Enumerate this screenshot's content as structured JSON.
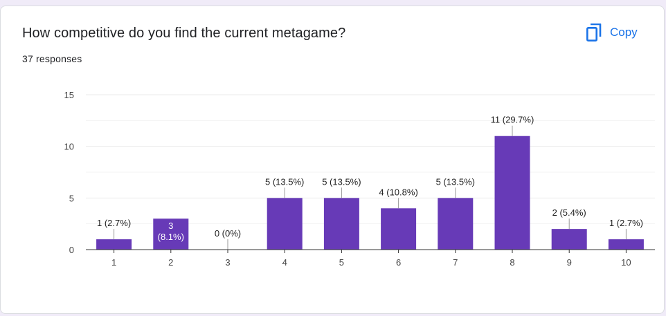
{
  "question": {
    "title": "How competitive do you find the current metagame?",
    "responses": "37 responses"
  },
  "toolbar": {
    "copy_label": "Copy",
    "copy_icon": "copy-icon"
  },
  "colors": {
    "bar": "#673ab7",
    "accent": "#1a73e8",
    "grid": "#ebebeb",
    "axis": "#333333"
  },
  "chart_data": {
    "type": "bar",
    "title": "",
    "xlabel": "",
    "ylabel": "",
    "categories": [
      "1",
      "2",
      "3",
      "4",
      "5",
      "6",
      "7",
      "8",
      "9",
      "10"
    ],
    "values": [
      1,
      3,
      0,
      5,
      5,
      4,
      5,
      11,
      2,
      1
    ],
    "data_labels": [
      "1 (2.7%)",
      "3 (8.1%)",
      "0 (0%)",
      "5 (13.5%)",
      "5 (13.5%)",
      "4 (10.8%)",
      "5 (13.5%)",
      "11 (29.7%)",
      "2 (5.4%)",
      "1 (2.7%)"
    ],
    "ylim": [
      0,
      15
    ],
    "yticks": [
      0,
      5,
      10,
      15
    ],
    "grid": true,
    "legend": "none"
  }
}
